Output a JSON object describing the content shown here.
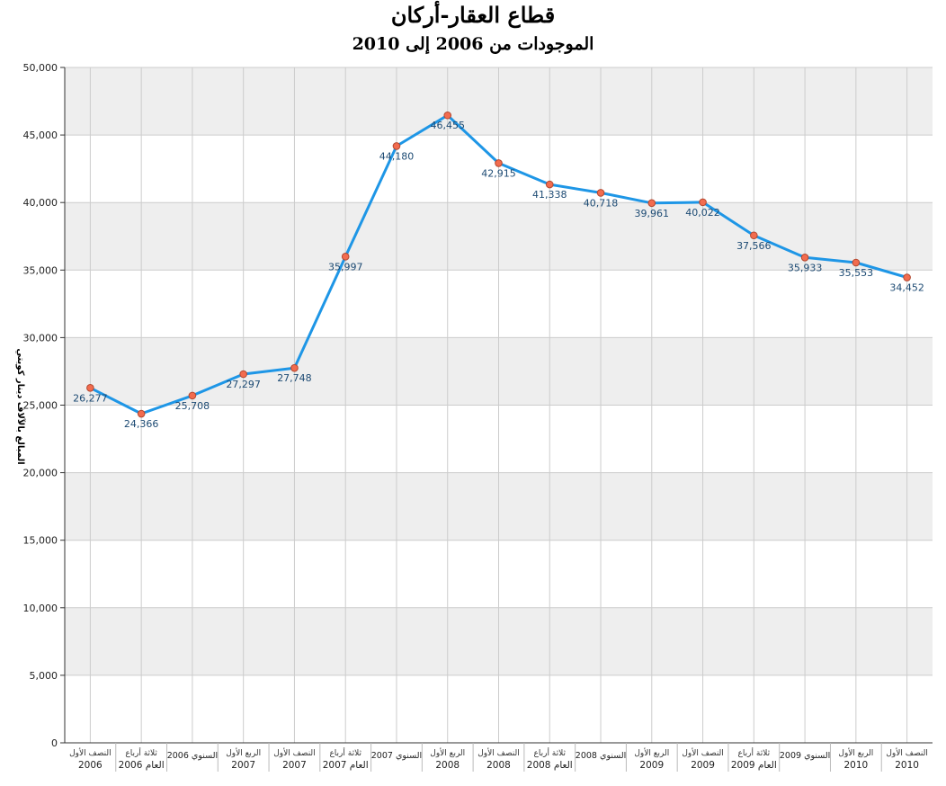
{
  "chart_data": {
    "type": "line",
    "title": "قطاع العقار-أركان",
    "subtitle": "الموجودات من 2006 إلى 2010",
    "ylabel": "المبالغ بالآلاف دينار كويتي",
    "xlabel": "",
    "ylim": [
      0,
      50000
    ],
    "yticks": [
      "0",
      "5,000",
      "10,000",
      "15,000",
      "20,000",
      "25,000",
      "30,000",
      "35,000",
      "40,000",
      "45,000",
      "50,000"
    ],
    "grid": "horizontal-bands",
    "categories": [
      [
        "النصف الأول",
        "2006"
      ],
      [
        "ثلاثة أرباع",
        "العام 2006"
      ],
      [
        "السنوي 2006",
        ""
      ],
      [
        "الربع الأول",
        "2007"
      ],
      [
        "النصف الأول",
        "2007"
      ],
      [
        "ثلاثة أرباع",
        "العام 2007"
      ],
      [
        "السنوي 2007",
        ""
      ],
      [
        "الربع الأول",
        "2008"
      ],
      [
        "النصف الأول",
        "2008"
      ],
      [
        "ثلاثة أرباع",
        "العام 2008"
      ],
      [
        "السنوي 2008",
        ""
      ],
      [
        "الربع الأول",
        "2009"
      ],
      [
        "النصف الأول",
        "2009"
      ],
      [
        "ثلاثة أرباع",
        "العام 2009"
      ],
      [
        "السنوي 2009",
        ""
      ],
      [
        "الربع الأول",
        "2010"
      ],
      [
        "النصف الأول",
        "2010"
      ]
    ],
    "values": [
      26277,
      24366,
      25708,
      27297,
      27748,
      35997,
      44180,
      46455,
      42915,
      41338,
      40718,
      39961,
      40022,
      37566,
      35933,
      35553,
      34452
    ],
    "value_labels": [
      "26,277",
      "24,366",
      "25,708",
      "27,297",
      "27,748",
      "35,997",
      "44,180",
      "46,455",
      "42,915",
      "41,338",
      "40,718",
      "39,961",
      "40,022",
      "37,566",
      "35,933",
      "35,553",
      "34,452"
    ],
    "colors": {
      "line": "#1e96e6",
      "marker_fill": "#f26c4f",
      "marker_stroke": "#b3472f",
      "label": "#1c4a73",
      "band": "#eeeeee",
      "grid": "#cccccc"
    }
  }
}
